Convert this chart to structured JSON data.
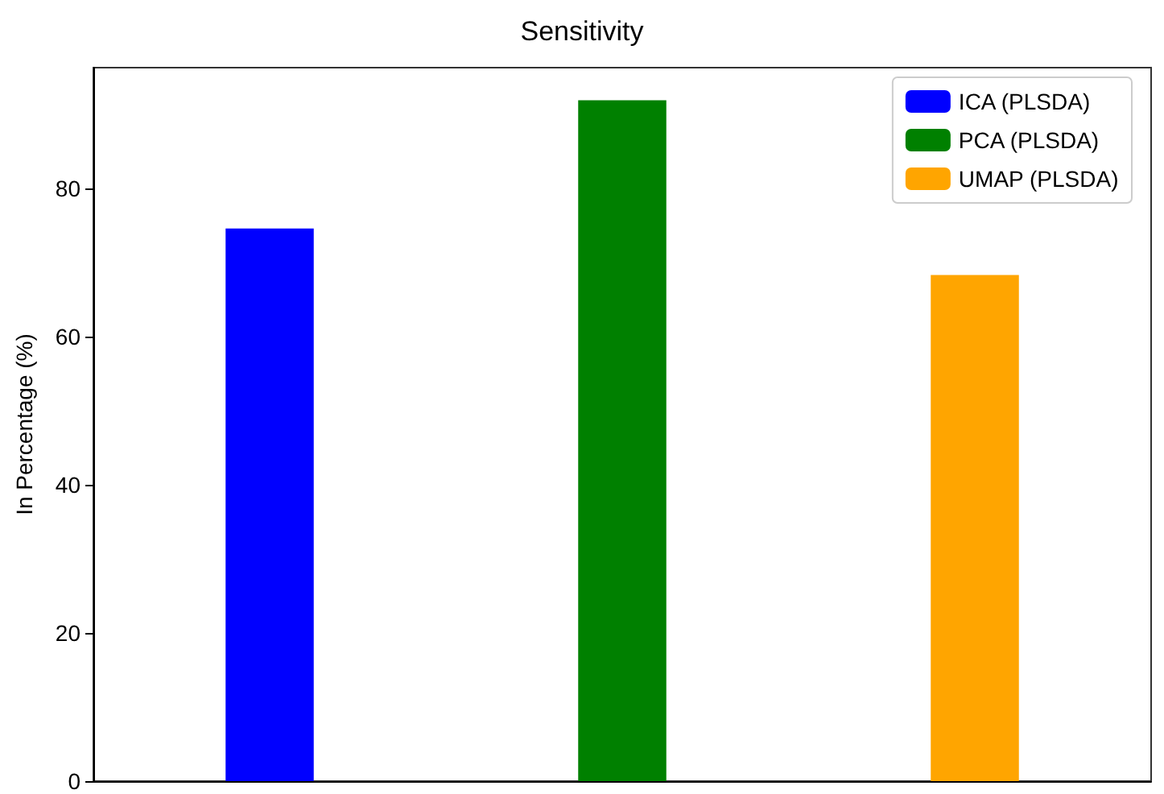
{
  "chart_data": {
    "type": "bar",
    "title": "Sensitivity",
    "ylabel": "In Percentage (%)",
    "categories": [
      null,
      null,
      null
    ],
    "series": [
      {
        "name": "ICA (PLSDA)",
        "color": "#0000ff",
        "values": [
          74.6,
          null,
          null
        ]
      },
      {
        "name": "PCA (PLSDA)",
        "color": "#008000",
        "values": [
          null,
          91.9,
          null
        ]
      },
      {
        "name": "UMAP (PLSDA)",
        "color": "#ffa500",
        "values": [
          null,
          null,
          68.3
        ]
      }
    ],
    "ylim": [
      0,
      96.3
    ],
    "yticks": [
      0,
      20,
      40,
      60,
      80
    ],
    "grid": false,
    "legend": "top right"
  }
}
